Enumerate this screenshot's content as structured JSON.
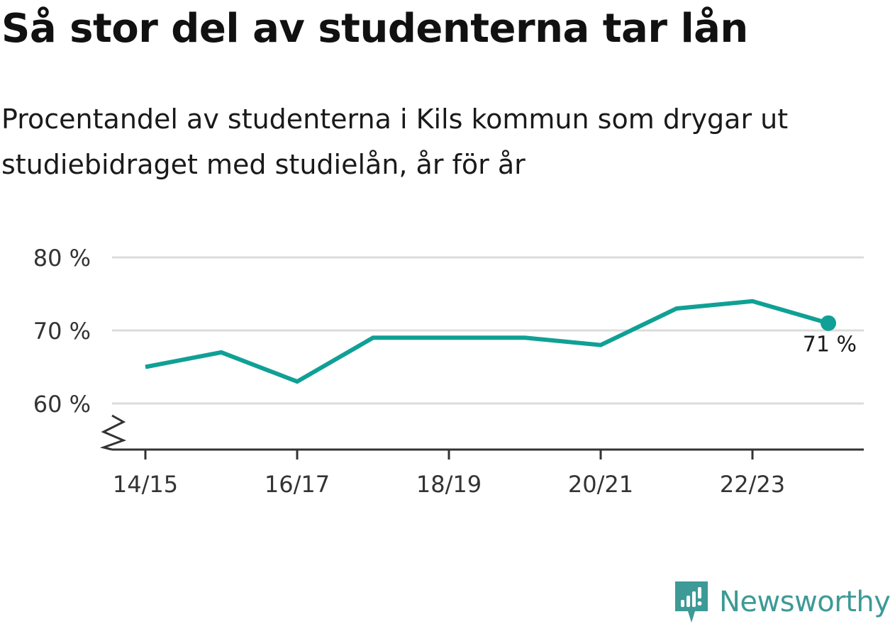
{
  "title": "Så stor del av studenterna tar lån",
  "subtitle": "Procentandel av studenterna i Kils kommun som drygar ut studiebidraget med studielån, år för år",
  "brand": {
    "name": "Newsworthy",
    "icon": "newsworthy-logo-icon",
    "color": "#3d9a96"
  },
  "colors": {
    "line": "#10a095",
    "grid": "#dcdcdc",
    "axis": "#333333"
  },
  "chart_data": {
    "type": "line",
    "x": [
      "14/15",
      "15/16",
      "16/17",
      "17/18",
      "18/19",
      "19/20",
      "20/21",
      "21/22",
      "22/23",
      "23/24"
    ],
    "xticks": [
      "14/15",
      "16/17",
      "18/19",
      "20/21",
      "22/23"
    ],
    "values": [
      65,
      67,
      63,
      69,
      69,
      69,
      68,
      73,
      74,
      71
    ],
    "yticks": [
      60,
      70,
      80
    ],
    "ytick_labels": [
      "60 %",
      "70 %",
      "80 %"
    ],
    "ylim": [
      60,
      80
    ],
    "broken_axis": true,
    "grid": true,
    "end_label": "71 %"
  }
}
